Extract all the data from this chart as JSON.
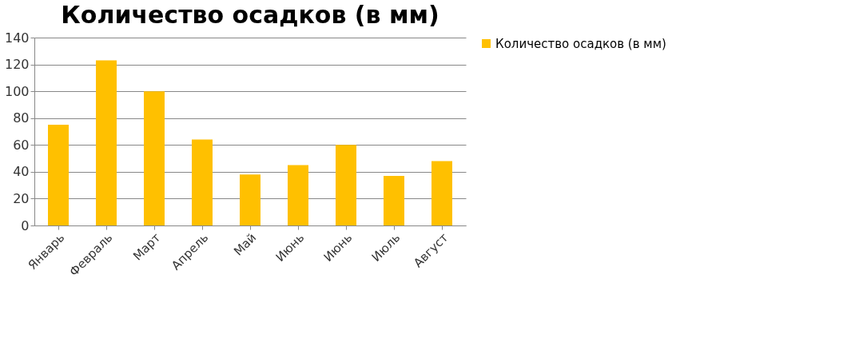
{
  "chart_data": {
    "type": "bar",
    "title": "Количество осадков (в мм)",
    "categories": [
      "Январь",
      "Февраль",
      "Март",
      "Апрель",
      "Май",
      "Июнь",
      "Июнь",
      "Июль",
      "Август"
    ],
    "series": [
      {
        "name": "Количество осадков (в мм)",
        "color": "#ffc000",
        "values": [
          75,
          123,
          100,
          64,
          38,
          45,
          60,
          37,
          48
        ]
      }
    ],
    "ylim": [
      0,
      140
    ],
    "yticks": [
      0,
      20,
      40,
      60,
      80,
      100,
      120,
      140
    ],
    "grid": "y",
    "legend": "right"
  }
}
